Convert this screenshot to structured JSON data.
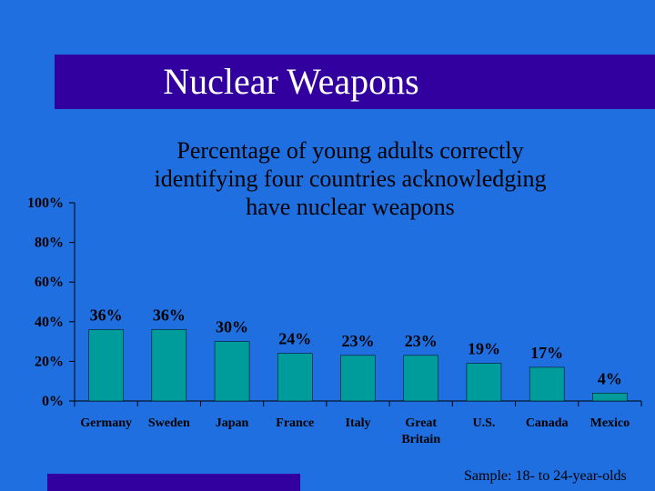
{
  "title": "Nuclear Weapons",
  "subtitle_lines": [
    "Percentage of young adults correctly",
    "identifying four countries acknowledging",
    "have nuclear weapons"
  ],
  "note": "Sample: 18- to 24-year-olds",
  "colors": {
    "background": "#1f6fe0",
    "band": "#3300a0",
    "bar": "#009b9b"
  },
  "chart_data": {
    "type": "bar",
    "categories": [
      "Germany",
      "Sweden",
      "Japan",
      "France",
      "Italy",
      "Great Britain",
      "U.S.",
      "Canada",
      "Mexico"
    ],
    "category_lines": [
      [
        "Germany"
      ],
      [
        "Sweden"
      ],
      [
        "Japan"
      ],
      [
        "France"
      ],
      [
        "Italy"
      ],
      [
        "Great",
        "Britain"
      ],
      [
        "U.S."
      ],
      [
        "Canada"
      ],
      [
        "Mexico"
      ]
    ],
    "values": [
      36,
      36,
      30,
      24,
      23,
      23,
      19,
      17,
      4
    ],
    "value_labels": [
      "36%",
      "36%",
      "30%",
      "24%",
      "23%",
      "23%",
      "19%",
      "17%",
      "4%"
    ],
    "y_ticks": [
      0,
      20,
      40,
      60,
      80,
      100
    ],
    "y_tick_labels": [
      "0%",
      "20%",
      "40%",
      "60%",
      "80%",
      "100%"
    ],
    "ylim": [
      0,
      100
    ],
    "grid": false
  }
}
